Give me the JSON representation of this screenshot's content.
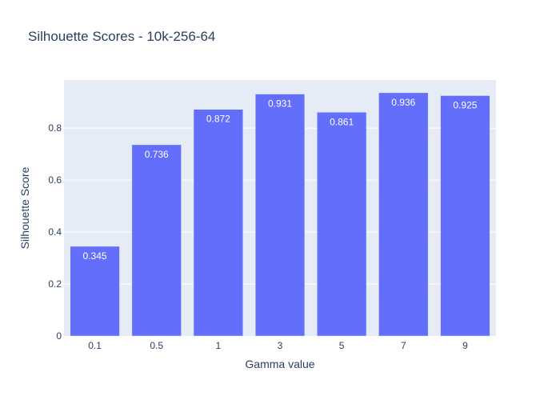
{
  "chart_data": {
    "type": "bar",
    "title": "Silhouette Scores - 10k-256-64",
    "xlabel": "Gamma value",
    "ylabel": "Silhouette Score",
    "categories": [
      "0.1",
      "0.5",
      "1",
      "3",
      "5",
      "7",
      "9"
    ],
    "values": [
      0.345,
      0.736,
      0.872,
      0.931,
      0.861,
      0.936,
      0.925
    ],
    "value_labels": [
      "0.345",
      "0.736",
      "0.872",
      "0.931",
      "0.861",
      "0.936",
      "0.925"
    ],
    "ylim": [
      0,
      0.985
    ],
    "yticks": [
      0,
      0.2,
      0.4,
      0.6,
      0.8
    ],
    "ytick_labels": [
      "0",
      "0.2",
      "0.4",
      "0.6",
      "0.8"
    ],
    "grid": true,
    "legend": "none"
  },
  "colors": {
    "bar": "#636efa",
    "plot_background": "#e5ecf6",
    "grid": "#ffffff",
    "text": "#2a3f5f",
    "bar_label": "#ffffff"
  }
}
